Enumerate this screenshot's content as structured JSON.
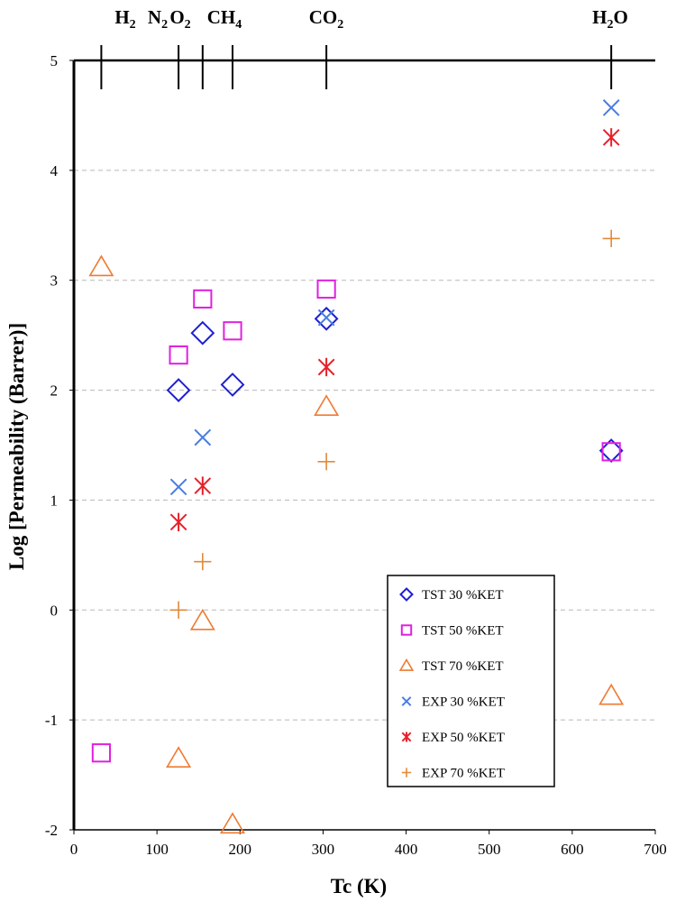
{
  "chart_data": {
    "type": "scatter",
    "title": "",
    "xlabel": "Tc  (K)",
    "ylabel": "Log [Permeability (Barrer)]",
    "xlim": [
      0,
      700
    ],
    "ylim": [
      -2,
      5
    ],
    "x_ticks": [
      0,
      100,
      200,
      300,
      400,
      500,
      600,
      700
    ],
    "y_ticks": [
      -2,
      -1,
      0,
      1,
      2,
      3,
      4,
      5
    ],
    "gridlines": "horizontal dashed",
    "legend_position": "bottom-right",
    "gas_markers": [
      {
        "tc": 33,
        "label": "H",
        "sub": "2",
        "tail": ""
      },
      {
        "tc": 126,
        "label": "N",
        "sub": "2",
        "tail": ""
      },
      {
        "tc": 155,
        "label": "O",
        "sub": "2",
        "tail": ""
      },
      {
        "tc": 191,
        "label": "CH",
        "sub": "4",
        "tail": ""
      },
      {
        "tc": 304,
        "label": "CO",
        "sub": "2",
        "tail": ""
      },
      {
        "tc": 647,
        "label": "H",
        "sub": "2",
        "tail": "O"
      }
    ],
    "series": [
      {
        "name": "TST 30 %KET",
        "marker": "diamond",
        "color": "#1f1fd0",
        "x": [
          126,
          155,
          191,
          304,
          647
        ],
        "y": [
          2.0,
          2.52,
          2.05,
          2.65,
          1.45
        ]
      },
      {
        "name": "TST 50 %KET",
        "marker": "square",
        "color": "#e020e0",
        "x": [
          33,
          126,
          155,
          191,
          304,
          647
        ],
        "y": [
          -1.3,
          2.32,
          2.83,
          2.54,
          2.92,
          1.44
        ]
      },
      {
        "name": "TST 70 %KET",
        "marker": "triangle",
        "color": "#ef7a30",
        "x": [
          33,
          126,
          155,
          191,
          304,
          647
        ],
        "y": [
          3.12,
          -1.35,
          -0.1,
          -1.95,
          1.85,
          -0.78
        ]
      },
      {
        "name": "EXP 30 %KET",
        "marker": "x",
        "color": "#4a7de0",
        "x": [
          126,
          155,
          304,
          647
        ],
        "y": [
          1.12,
          1.57,
          2.66,
          4.57
        ]
      },
      {
        "name": "EXP 50 %KET",
        "marker": "asterisk",
        "color": "#e8202a",
        "x": [
          126,
          155,
          304,
          647
        ],
        "y": [
          0.8,
          1.13,
          2.21,
          4.3
        ]
      },
      {
        "name": "EXP 70 %KET",
        "marker": "plus",
        "color": "#e08a3a",
        "x": [
          126,
          155,
          304,
          647
        ],
        "y": [
          0.0,
          0.44,
          1.35,
          3.38
        ]
      }
    ]
  }
}
